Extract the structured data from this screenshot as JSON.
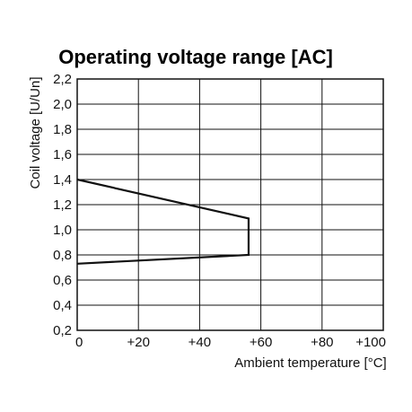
{
  "chart_data": {
    "type": "line",
    "title": "Operating voltage range [AC]",
    "xlabel": "Ambient temperature [°C]",
    "ylabel": "Coil voltage [U/Un]",
    "xlim": [
      0,
      100
    ],
    "ylim": [
      0.2,
      2.2
    ],
    "x_ticks": [
      0,
      20,
      40,
      60,
      80,
      100
    ],
    "x_tick_labels": [
      "0",
      "+20",
      "+40",
      "+60",
      "+80",
      "+100"
    ],
    "y_ticks": [
      0.2,
      0.4,
      0.6,
      0.8,
      1.0,
      1.2,
      1.4,
      1.6,
      1.8,
      2.0,
      2.2
    ],
    "y_tick_labels": [
      "0,2",
      "0,4",
      "0,6",
      "0,8",
      "1,0",
      "1,2",
      "1,4",
      "1,6",
      "1,8",
      "2,0",
      "2,2"
    ],
    "grid": true,
    "series": [
      {
        "points": [
          {
            "x": 0,
            "y": 1.4
          },
          {
            "x": 56,
            "y": 1.09
          },
          {
            "x": 56,
            "y": 0.8
          },
          {
            "x": 0,
            "y": 0.73
          }
        ],
        "color": "#111111"
      }
    ]
  }
}
